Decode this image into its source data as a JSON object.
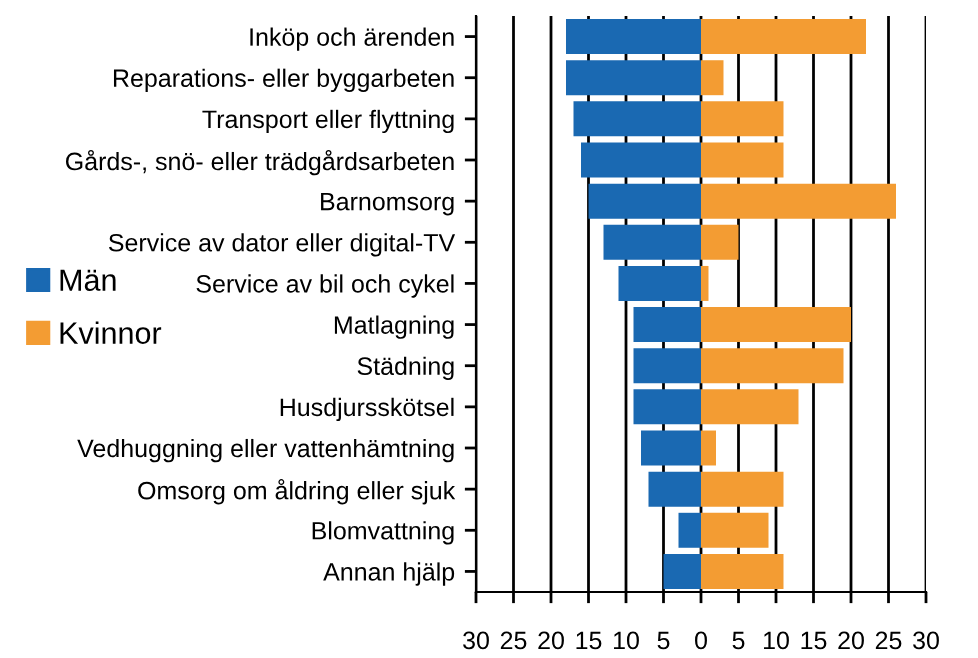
{
  "chart_data": {
    "type": "bar",
    "orientation": "horizontal",
    "stacked": true,
    "categories": [
      "Inköp och ärenden",
      "Reparations- eller byggarbeten",
      "Transport eller flyttning",
      "Gårds-, snö- eller trädgårdsarbeten",
      "Barnomsorg",
      "Service av dator eller digital-TV",
      "Service av bil och cykel",
      "Matlagning",
      "Städning",
      "Husdjursskötsel",
      "Vedhuggning eller vattenhämtning",
      "Omsorg om åldring eller sjuk",
      "Blomvattning",
      "Annan hjälp"
    ],
    "series": [
      {
        "name": "Män",
        "color": "#1a69b2",
        "values": [
          -18,
          -18,
          -17,
          -16,
          -15,
          -13,
          -11,
          -9,
          -9,
          -9,
          -8,
          -7,
          -3,
          -5
        ]
      },
      {
        "name": "Kvinnor",
        "color": "#f39c33",
        "values": [
          22,
          3,
          11,
          11,
          26,
          5,
          1,
          20,
          19,
          13,
          2,
          11,
          9,
          11
        ]
      }
    ],
    "xlim": [
      -30,
      30
    ],
    "xticks": [
      {
        "value": -30,
        "label": "30"
      },
      {
        "value": -25,
        "label": "25"
      },
      {
        "value": -20,
        "label": "20"
      },
      {
        "value": -15,
        "label": "15"
      },
      {
        "value": -10,
        "label": "10"
      },
      {
        "value": -5,
        "label": "5"
      },
      0,
      5,
      10,
      15,
      20,
      25,
      30
    ],
    "grid": "x",
    "legend": "left"
  }
}
